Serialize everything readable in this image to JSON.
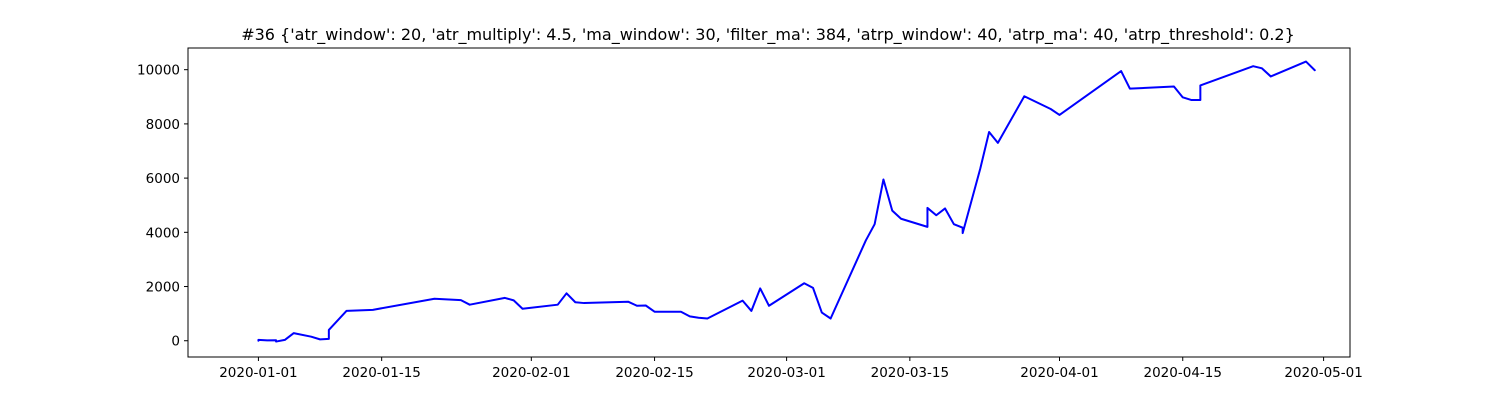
{
  "chart_data": {
    "type": "line",
    "title": "#36 {'atr_window': 20, 'atr_multiply': 4.5, 'ma_window': 30, 'filter_ma': 384, 'atrp_window': 40, 'atrp_ma': 40, 'atrp_threshold': 0.2}",
    "xlabel": "",
    "ylabel": "",
    "x_axis_type": "date",
    "xlim": [
      "2019-12-24",
      "2020-05-04"
    ],
    "ylim": [
      -600,
      10800
    ],
    "x_ticks": [
      "2020-01-01",
      "2020-01-15",
      "2020-02-01",
      "2020-02-15",
      "2020-03-01",
      "2020-03-15",
      "2020-04-01",
      "2020-04-15",
      "2020-05-01"
    ],
    "y_ticks": [
      0,
      2000,
      4000,
      6000,
      8000,
      10000
    ],
    "grid": false,
    "legend": "none",
    "series_color": "#0000ff",
    "series": [
      {
        "x": [
          "2020-01-01",
          "2020-01-01",
          "2020-01-02",
          "2020-01-03",
          "2020-01-03",
          "2020-01-04",
          "2020-01-05",
          "2020-01-07",
          "2020-01-08",
          "2020-01-09",
          "2020-01-09",
          "2020-01-11",
          "2020-01-14",
          "2020-01-21",
          "2020-01-24",
          "2020-01-25",
          "2020-01-29",
          "2020-01-30",
          "2020-01-31",
          "2020-02-04",
          "2020-02-05",
          "2020-02-06",
          "2020-02-07",
          "2020-02-12",
          "2020-02-13",
          "2020-02-14",
          "2020-02-15",
          "2020-02-18",
          "2020-02-19",
          "2020-02-20",
          "2020-02-21",
          "2020-02-25",
          "2020-02-26",
          "2020-02-27",
          "2020-02-28",
          "2020-03-03",
          "2020-03-04",
          "2020-03-05",
          "2020-03-06",
          "2020-03-10",
          "2020-03-11",
          "2020-03-12",
          "2020-03-13",
          "2020-03-14",
          "2020-03-17",
          "2020-03-17",
          "2020-03-18",
          "2020-03-19",
          "2020-03-20",
          "2020-03-21",
          "2020-03-21",
          "2020-03-23",
          "2020-03-24",
          "2020-03-25",
          "2020-03-28",
          "2020-03-31",
          "2020-04-01",
          "2020-04-08",
          "2020-04-09",
          "2020-04-14",
          "2020-04-15",
          "2020-04-16",
          "2020-04-17",
          "2020-04-17",
          "2020-04-23",
          "2020-04-24",
          "2020-04-25",
          "2020-04-29",
          "2020-04-30"
        ],
        "values": [
          0,
          30,
          15,
          20,
          -30,
          30,
          280,
          150,
          50,
          70,
          400,
          1100,
          1140,
          1550,
          1500,
          1330,
          1580,
          1490,
          1180,
          1330,
          1750,
          1420,
          1390,
          1440,
          1290,
          1300,
          1070,
          1070,
          900,
          850,
          820,
          1480,
          1100,
          1930,
          1290,
          2120,
          1950,
          1040,
          820,
          3700,
          4300,
          5950,
          4800,
          4500,
          4200,
          4900,
          4630,
          4880,
          4300,
          4170,
          3970,
          6350,
          7700,
          7300,
          9020,
          8550,
          8330,
          9950,
          9300,
          9380,
          8980,
          8880,
          8880,
          9420,
          10130,
          10050,
          9750,
          10300,
          9980
        ]
      }
    ]
  }
}
